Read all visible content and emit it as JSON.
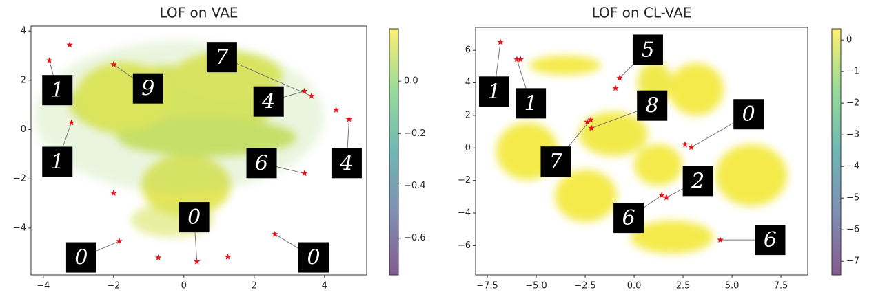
{
  "chart_data": [
    {
      "type": "scatter",
      "title": "LOF on VAE",
      "xlim": [
        -4.35,
        5.2
      ],
      "ylim": [
        -5.9,
        4.2
      ],
      "xticks": [
        {
          "value": -4,
          "label": "−4"
        },
        {
          "value": -2,
          "label": "−2"
        },
        0,
        2,
        4
      ],
      "yticks": [
        {
          "value": -4,
          "label": "−4"
        },
        {
          "value": -2,
          "label": "−2"
        },
        0,
        2,
        4
      ],
      "series": [
        {
          "color": "#e8141b",
          "x": [
            -3.25,
            -3.83,
            -3.2,
            -2.0,
            -2.0,
            -1.84,
            -0.73,
            0.37,
            1.25,
            2.59,
            3.43,
            3.63,
            4.33,
            4.7,
            3.43
          ],
          "y": [
            3.44,
            2.8,
            0.28,
            2.64,
            -2.58,
            -4.53,
            -5.2,
            -5.36,
            -5.17,
            -4.25,
            1.56,
            1.36,
            0.8,
            0.42,
            -1.78
          ]
        }
      ],
      "colorbar": {
        "lim": [
          -0.74,
          0.2
        ],
        "ticks": [
          {
            "value": 0,
            "label": "0.0"
          },
          {
            "value": -0.2,
            "label": "−0.2"
          },
          {
            "value": -0.4,
            "label": "−0.4"
          },
          {
            "value": -0.6,
            "label": "−0.6"
          }
        ]
      },
      "annotations": [
        {
          "text": "1",
          "xy": [
            -3.83,
            2.8
          ],
          "xytext": [
            -3.6,
            1.6
          ]
        },
        {
          "text": "9",
          "xy": [
            -2.0,
            2.64
          ],
          "xytext": [
            -1.02,
            1.67
          ]
        },
        {
          "text": "7",
          "xy": [
            3.63,
            1.36
          ],
          "xytext": [
            1.08,
            2.94
          ]
        },
        {
          "text": "4",
          "xy": [
            3.43,
            1.56
          ],
          "xytext": [
            2.41,
            1.14
          ]
        },
        {
          "text": "1",
          "xy": [
            -3.2,
            0.28
          ],
          "xytext": [
            -3.6,
            -1.31
          ]
        },
        {
          "text": "6",
          "xy": [
            3.43,
            -1.78
          ],
          "xytext": [
            2.21,
            -1.36
          ]
        },
        {
          "text": "4",
          "xy": [
            4.7,
            0.42
          ],
          "xytext": [
            4.63,
            -1.36
          ]
        },
        {
          "text": "0",
          "xy": [
            0.37,
            -5.36
          ],
          "xytext": [
            0.29,
            -3.56
          ]
        },
        {
          "text": "0",
          "xy": [
            -1.84,
            -4.53
          ],
          "xytext": [
            -2.92,
            -5.19
          ]
        },
        {
          "text": "0",
          "xy": [
            2.59,
            -4.25
          ],
          "xytext": [
            3.69,
            -5.19
          ]
        }
      ]
    },
    {
      "type": "scatter",
      "title": "LOF on CL-VAE",
      "xlim": [
        -8.1,
        8.87
      ],
      "ylim": [
        -7.8,
        7.4
      ],
      "xticks": [
        {
          "value": -7.5,
          "label": "−7.5"
        },
        {
          "value": -5,
          "label": "−5.0"
        },
        {
          "value": -2.5,
          "label": "−2.5"
        },
        {
          "value": 0,
          "label": "0.0"
        },
        2.5,
        {
          "value": 5,
          "label": "5.0"
        },
        7.5
      ],
      "yticks": [
        {
          "value": -6,
          "label": "−6"
        },
        {
          "value": -4,
          "label": "−4"
        },
        {
          "value": -2,
          "label": "−2"
        },
        0,
        2,
        4,
        6
      ],
      "series": [
        {
          "color": "#e8141b",
          "x": [
            -6.83,
            -5.99,
            -5.8,
            -2.22,
            -2.4,
            -2.18,
            -0.74,
            -0.95,
            2.6,
            2.92,
            1.41,
            1.65,
            4.4
          ],
          "y": [
            6.5,
            5.44,
            5.44,
            1.73,
            1.6,
            1.22,
            4.3,
            3.67,
            0.21,
            0.04,
            -2.91,
            -3.04,
            -5.65
          ]
        }
      ],
      "colorbar": {
        "lim": [
          -7.43,
          0.35
        ],
        "ticks": [
          0,
          {
            "value": -1,
            "label": "−1"
          },
          {
            "value": -2,
            "label": "−2"
          },
          {
            "value": -3,
            "label": "−3"
          },
          {
            "value": -4,
            "label": "−4"
          },
          {
            "value": -5,
            "label": "−5"
          },
          {
            "value": -6,
            "label": "−6"
          },
          {
            "value": -7,
            "label": "−7"
          }
        ]
      },
      "annotations": [
        {
          "text": "1",
          "xy": [
            -6.83,
            6.5
          ],
          "xytext": [
            -7.15,
            3.46
          ]
        },
        {
          "text": "1",
          "xy": [
            -5.99,
            5.44
          ],
          "xytext": [
            -5.28,
            2.74
          ]
        },
        {
          "text": "5",
          "xy": [
            -0.74,
            4.3
          ],
          "xytext": [
            0.7,
            6.03
          ]
        },
        {
          "text": "8",
          "xy": [
            -2.18,
            1.22
          ],
          "xytext": [
            0.92,
            2.6
          ]
        },
        {
          "text": "0",
          "xy": [
            2.92,
            0.04
          ],
          "xytext": [
            5.85,
            2.07
          ]
        },
        {
          "text": "7",
          "xy": [
            -2.22,
            1.73
          ],
          "xytext": [
            -4.0,
            -0.84
          ]
        },
        {
          "text": "2",
          "xy": [
            1.65,
            -3.04
          ],
          "xytext": [
            3.26,
            -2.03
          ]
        },
        {
          "text": "6",
          "xy": [
            1.41,
            -2.91
          ],
          "xytext": [
            -0.28,
            -4.3
          ]
        },
        {
          "text": "6",
          "xy": [
            4.4,
            -5.65
          ],
          "xytext": [
            6.95,
            -5.65
          ]
        }
      ]
    }
  ]
}
